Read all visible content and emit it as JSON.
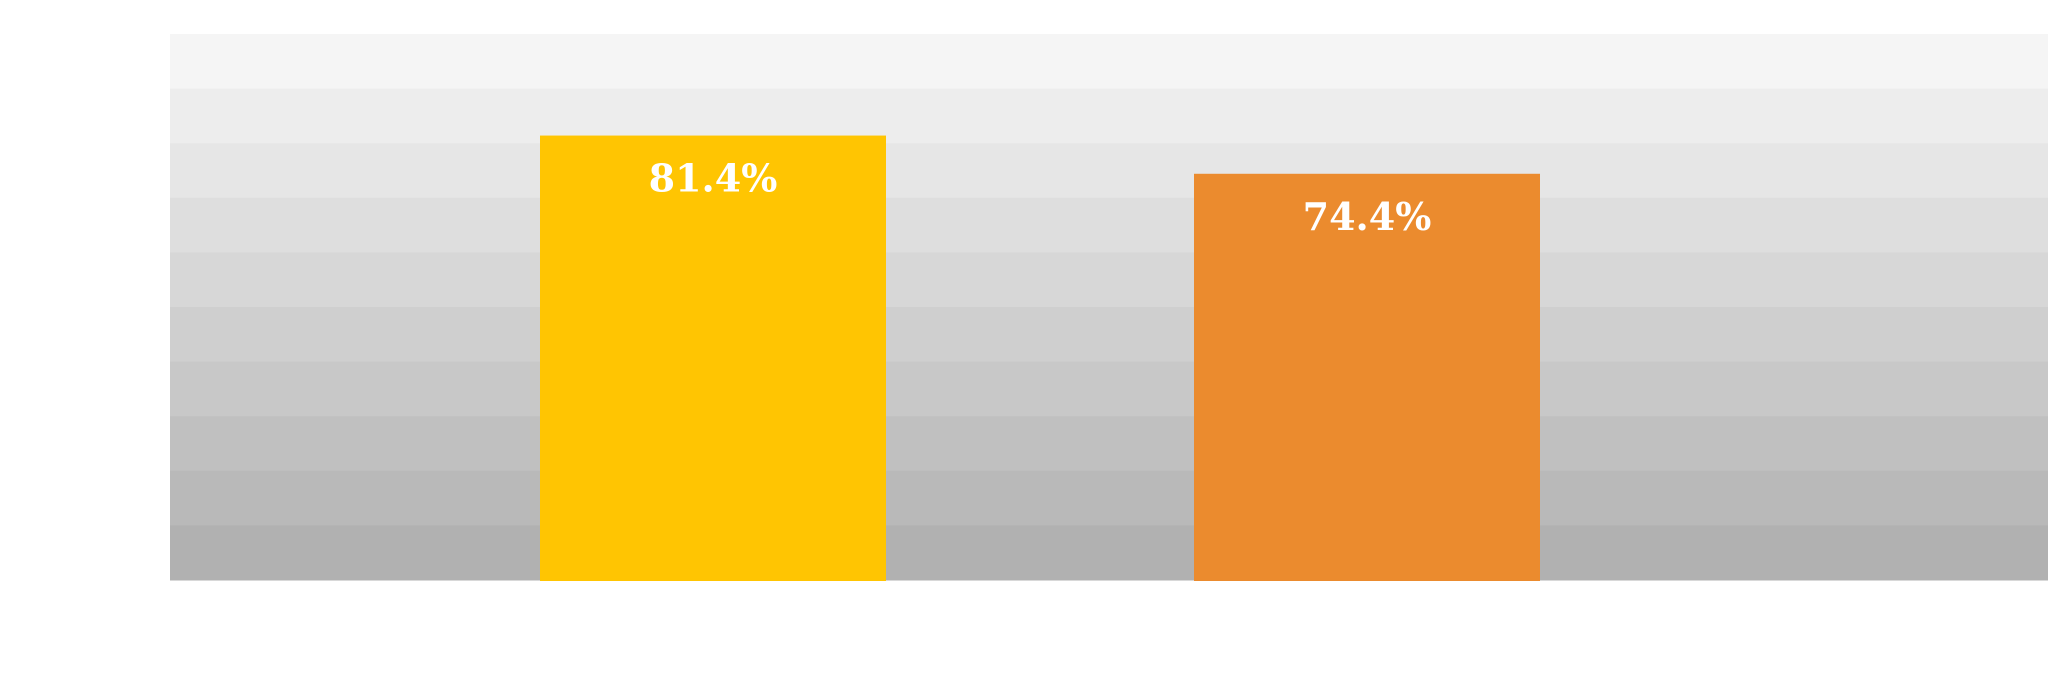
{
  "chart_data": {
    "type": "bar",
    "title": "",
    "xlabel": "",
    "ylabel": "",
    "categories": [
      "",
      ""
    ],
    "values": [
      81.4,
      74.4
    ],
    "data_labels": [
      "81.4%",
      "74.4%"
    ],
    "value_unit": "%",
    "colors": [
      "#ffc502",
      "#eb8b2e"
    ],
    "label_color": "#ffffff",
    "ylim": [
      0,
      100
    ],
    "grid": false,
    "legend": "none",
    "background": {
      "style": "horizontal stripes, gradient from light gray (top) to darker gray (bottom)",
      "top_color": "#f5f5f5",
      "bottom_color": "#b1b1b1",
      "bands": 10
    }
  }
}
